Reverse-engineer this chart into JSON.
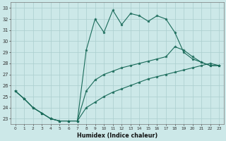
{
  "xlabel": "Humidex (Indice chaleur)",
  "xlim": [
    -0.5,
    23.5
  ],
  "ylim": [
    22.5,
    33.5
  ],
  "yticks": [
    23,
    24,
    25,
    26,
    27,
    28,
    29,
    30,
    31,
    32,
    33
  ],
  "xticks": [
    0,
    1,
    2,
    3,
    4,
    5,
    6,
    7,
    8,
    9,
    10,
    11,
    12,
    13,
    14,
    15,
    16,
    17,
    18,
    19,
    20,
    21,
    22,
    23
  ],
  "bg_color": "#cce8e8",
  "grid_color": "#aacece",
  "line_color": "#1a6b5a",
  "line_top": [
    25.5,
    24.8,
    24.0,
    23.5,
    23.0,
    22.8,
    22.8,
    22.8,
    29.2,
    32.0,
    30.8,
    32.8,
    31.5,
    32.5,
    32.3,
    31.8,
    32.3,
    32.0,
    30.8,
    29.0,
    28.4,
    28.1,
    27.8,
    27.8
  ],
  "line_mid": [
    25.5,
    24.8,
    24.0,
    23.5,
    23.0,
    22.8,
    22.8,
    22.8,
    25.5,
    26.5,
    27.0,
    27.3,
    27.6,
    27.8,
    28.0,
    28.2,
    28.4,
    28.6,
    29.5,
    29.2,
    28.6,
    28.1,
    27.8,
    27.8
  ],
  "line_bot": [
    25.5,
    24.8,
    24.0,
    23.5,
    23.0,
    22.8,
    22.8,
    22.8,
    24.0,
    24.5,
    25.0,
    25.4,
    25.7,
    26.0,
    26.3,
    26.6,
    26.8,
    27.0,
    27.2,
    27.4,
    27.6,
    27.8,
    28.0,
    27.8
  ]
}
